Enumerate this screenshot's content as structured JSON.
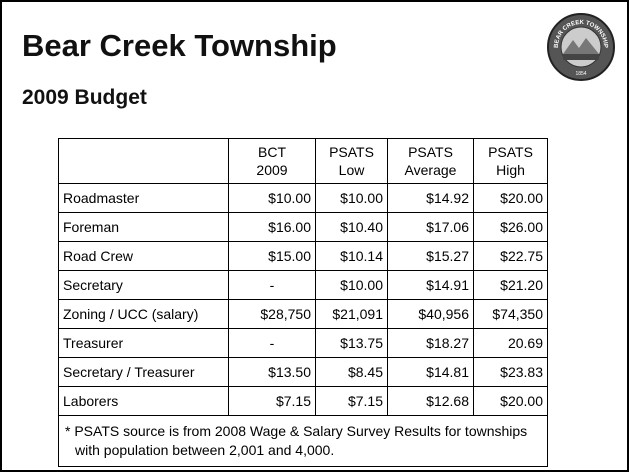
{
  "header": {
    "title": "Bear Creek Township",
    "subtitle": "2009 Budget"
  },
  "logo": {
    "text": "BEAR CREEK TOWNSHIP",
    "year": "1854"
  },
  "table": {
    "columns": [
      [
        "BCT",
        "2009"
      ],
      [
        "PSATS",
        "Low"
      ],
      [
        "PSATS",
        "Average"
      ],
      [
        "PSATS",
        "High"
      ]
    ],
    "rows": [
      [
        "Roadmaster",
        "$10.00",
        "$10.00",
        "$14.92",
        "$20.00"
      ],
      [
        "Foreman",
        "$16.00",
        "$10.40",
        "$17.06",
        "$26.00"
      ],
      [
        "Road Crew",
        "$15.00",
        "$10.14",
        "$15.27",
        "$22.75"
      ],
      [
        "Secretary",
        "-",
        "$10.00",
        "$14.91",
        "$21.20"
      ],
      [
        "Zoning / UCC (salary)",
        "$28,750",
        "$21,091",
        "$40,956",
        "$74,350"
      ],
      [
        "Treasurer",
        "-",
        "$13.75",
        "$18.27",
        "20.69"
      ],
      [
        "Secretary / Treasurer",
        "$13.50",
        "$8.45",
        "$14.81",
        "$23.83"
      ],
      [
        "Laborers",
        "$7.15",
        "$7.15",
        "$12.68",
        "$20.00"
      ]
    ],
    "footnote": "* PSATS source is from 2008 Wage & Salary Survey Results for townships with population between 2,001 and 4,000."
  }
}
